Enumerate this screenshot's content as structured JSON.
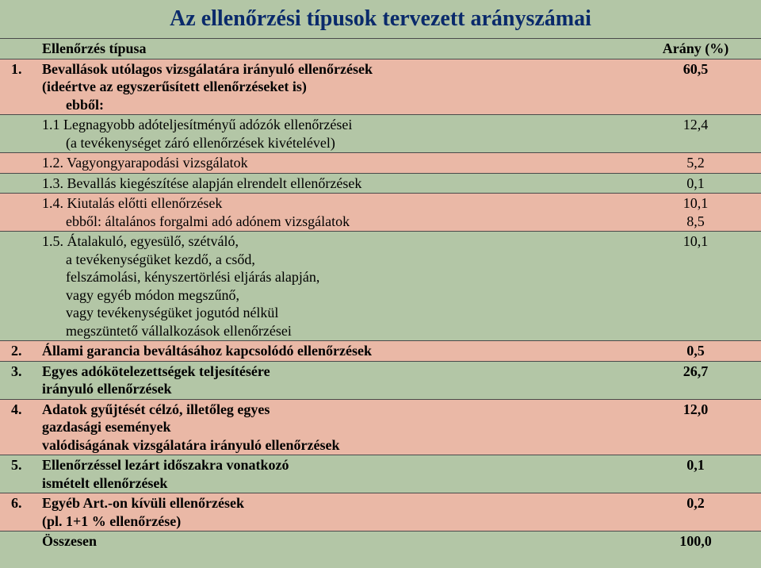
{
  "title": "Az ellenőrzési típusok tervezett arányszámai",
  "header": {
    "col1": "",
    "col2": "Ellenőrzés típusa",
    "col3": "Arány (%)"
  },
  "rows": [
    {
      "num": "1.",
      "desc": "Bevallások utólagos vizsgálatára irányuló ellenőrzések\n(ideértve az egyszerűsített ellenőrzéseket is)",
      "sub": "ebből:",
      "val": "60,5",
      "color": "pink",
      "bold": true,
      "border": true
    },
    {
      "num": "",
      "desc": "1.1 Legnagyobb adóteljesítményű adózók ellenőrzései",
      "sub": "(a tevékenységet záró ellenőrzések kivételével)",
      "val": "12,4",
      "color": "green",
      "bold": false,
      "border": true
    },
    {
      "num": "",
      "desc": "1.2. Vagyongyarapodási vizsgálatok",
      "sub": "",
      "val": "5,2",
      "color": "pink",
      "bold": false,
      "border": true
    },
    {
      "num": "",
      "desc": "1.3. Bevallás kiegészítése alapján elrendelt ellenőrzések",
      "sub": "",
      "val": "0,1",
      "color": "green",
      "bold": false,
      "border": true
    },
    {
      "num": "",
      "desc": "1.4. Kiutalás előtti ellenőrzések",
      "sub": "ebből: általános forgalmi adó adónem vizsgálatok",
      "val": "10,1\n8,5",
      "color": "pink",
      "bold": false,
      "border": true
    },
    {
      "num": "",
      "desc": "1.5. Átalakuló, egyesülő, szétváló,",
      "sub": "a tevékenységüket kezdő, a csőd,\nfelszámolási, kényszertörlési eljárás alapján,\nvagy egyéb módon megszűnő,\nvagy tevékenységüket jogutód nélkül\nmegszüntető vállalkozások ellenőrzései",
      "val": "10,1",
      "color": "green",
      "bold": false,
      "border": true
    },
    {
      "num": "2.",
      "desc": "Állami garancia beváltásához kapcsolódó ellenőrzések",
      "sub": "",
      "val": "0,5",
      "color": "pink",
      "bold": true,
      "border": true
    },
    {
      "num": "3.",
      "desc": "Egyes adókötelezettségek teljesítésére\nirányuló ellenőrzések",
      "sub": "",
      "val": "26,7",
      "color": "green",
      "bold": true,
      "border": true
    },
    {
      "num": "4.",
      "desc": "Adatok gyűjtését célzó, illetőleg egyes\ngazdasági események\nvalódiságának vizsgálatára irányuló ellenőrzések",
      "sub": "",
      "val": "12,0",
      "color": "pink",
      "bold": true,
      "border": true
    },
    {
      "num": "5.",
      "desc": "Ellenőrzéssel lezárt időszakra vonatkozó\nismételt ellenőrzések",
      "sub": "",
      "val": "0,1",
      "color": "green",
      "bold": true,
      "border": true
    },
    {
      "num": "6.",
      "desc": "Egyéb Art.-on kívüli ellenőrzések\n(pl. 1+1 % ellenőrzése)",
      "sub": "",
      "val": "0,2",
      "color": "pink",
      "bold": true,
      "border": true
    },
    {
      "num": "",
      "desc": "Összesen",
      "sub": "",
      "val": "100,0",
      "color": "green",
      "bold": true,
      "border": true
    }
  ],
  "colors": {
    "green": "#b3c6a6",
    "pink": "#eab8a6",
    "title": "#0a2a6b",
    "border": "#4a4a4a"
  }
}
